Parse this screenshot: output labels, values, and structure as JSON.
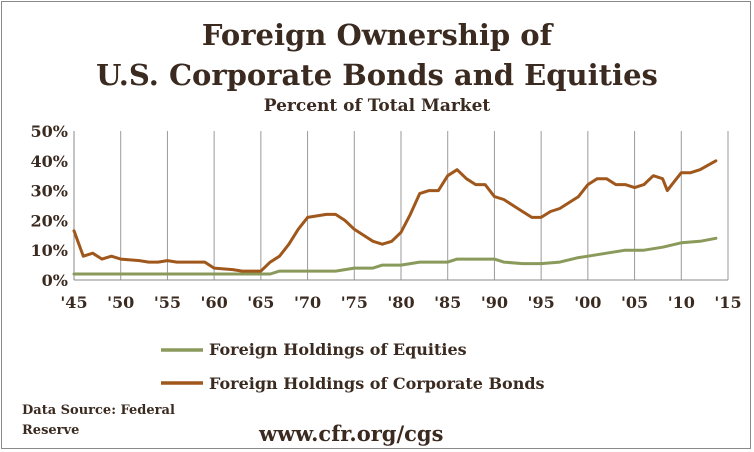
{
  "chart_data": {
    "type": "line",
    "title_line1": "Foreign Ownership of",
    "title_line2": "U.S. Corporate Bonds and Equities",
    "subtitle": "Percent of Total Market",
    "xlim": [
      1945,
      2015
    ],
    "ylim": [
      0,
      50
    ],
    "x_ticks": [
      1945,
      1950,
      1955,
      1960,
      1965,
      1970,
      1975,
      1980,
      1985,
      1990,
      1995,
      2000,
      2005,
      2010,
      2015
    ],
    "x_tick_labels": [
      "'45",
      "'50",
      "'55",
      "'60",
      "'65",
      "'70",
      "'75",
      "'80",
      "'85",
      "'90",
      "'95",
      "'00",
      "'05",
      "'10",
      "'15"
    ],
    "y_ticks": [
      0,
      10,
      20,
      30,
      40,
      50
    ],
    "y_tick_labels": [
      "0%",
      "10%",
      "20%",
      "30%",
      "40%",
      "50%"
    ],
    "grid": "vertical",
    "legend_position": "bottom",
    "series": [
      {
        "name": "Foreign Holdings of Equities",
        "color": "#8a9a5b",
        "points": [
          [
            1945,
            2
          ],
          [
            1948,
            2
          ],
          [
            1952,
            2
          ],
          [
            1955,
            2
          ],
          [
            1960,
            2
          ],
          [
            1963,
            2
          ],
          [
            1965,
            2
          ],
          [
            1966,
            2
          ],
          [
            1967,
            3
          ],
          [
            1968,
            3
          ],
          [
            1970,
            3
          ],
          [
            1973,
            3
          ],
          [
            1975,
            4
          ],
          [
            1977,
            4
          ],
          [
            1978,
            5
          ],
          [
            1980,
            5
          ],
          [
            1982,
            6
          ],
          [
            1985,
            6
          ],
          [
            1986,
            7
          ],
          [
            1988,
            7
          ],
          [
            1990,
            7
          ],
          [
            1991,
            6
          ],
          [
            1993,
            5.5
          ],
          [
            1995,
            5.5
          ],
          [
            1997,
            6
          ],
          [
            1999,
            7.5
          ],
          [
            2000,
            8
          ],
          [
            2002,
            9
          ],
          [
            2004,
            10
          ],
          [
            2006,
            10
          ],
          [
            2008,
            11
          ],
          [
            2010,
            12.5
          ],
          [
            2012,
            13
          ],
          [
            2013.7,
            14
          ]
        ]
      },
      {
        "name": "Foreign Holdings of Corporate Bonds",
        "color": "#a0571c",
        "points": [
          [
            1945,
            16.5
          ],
          [
            1946,
            8
          ],
          [
            1947,
            9
          ],
          [
            1948,
            7
          ],
          [
            1949,
            8
          ],
          [
            1950,
            7
          ],
          [
            1952,
            6.5
          ],
          [
            1953,
            6
          ],
          [
            1954,
            6
          ],
          [
            1955,
            6.5
          ],
          [
            1956,
            6
          ],
          [
            1959,
            6
          ],
          [
            1960,
            4
          ],
          [
            1962,
            3.5
          ],
          [
            1963,
            3
          ],
          [
            1964,
            3
          ],
          [
            1965,
            3
          ],
          [
            1966,
            6
          ],
          [
            1967,
            8
          ],
          [
            1968,
            12
          ],
          [
            1969,
            17
          ],
          [
            1970,
            21
          ],
          [
            1972,
            22
          ],
          [
            1973,
            22
          ],
          [
            1974,
            20
          ],
          [
            1975,
            17
          ],
          [
            1976,
            15
          ],
          [
            1977,
            13
          ],
          [
            1978,
            12
          ],
          [
            1979,
            13
          ],
          [
            1980,
            16
          ],
          [
            1981,
            22
          ],
          [
            1982,
            29
          ],
          [
            1983,
            30
          ],
          [
            1984,
            30
          ],
          [
            1985,
            35
          ],
          [
            1986,
            37
          ],
          [
            1987,
            34
          ],
          [
            1988,
            32
          ],
          [
            1989,
            32
          ],
          [
            1990,
            28
          ],
          [
            1991,
            27
          ],
          [
            1992,
            25
          ],
          [
            1993,
            23
          ],
          [
            1994,
            21
          ],
          [
            1995,
            21
          ],
          [
            1996,
            23
          ],
          [
            1997,
            24
          ],
          [
            1998,
            26
          ],
          [
            1999,
            28
          ],
          [
            2000,
            32
          ],
          [
            2001,
            34
          ],
          [
            2002,
            34
          ],
          [
            2003,
            32
          ],
          [
            2004,
            32
          ],
          [
            2005,
            31
          ],
          [
            2006,
            32
          ],
          [
            2007,
            35
          ],
          [
            2008,
            34
          ],
          [
            2008.5,
            30
          ],
          [
            2009,
            32
          ],
          [
            2010,
            36
          ],
          [
            2011,
            36
          ],
          [
            2012,
            37
          ],
          [
            2013.7,
            40
          ]
        ]
      }
    ],
    "source_note": "Data Source: Federal Reserve",
    "website": "www.cfr.org/cgs"
  }
}
